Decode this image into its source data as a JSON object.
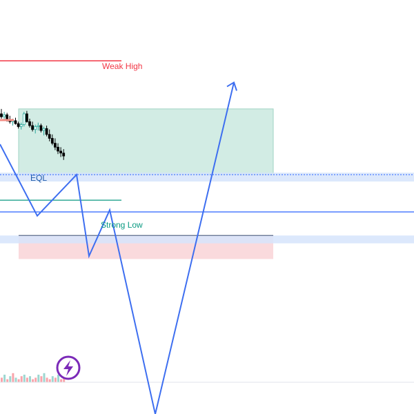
{
  "chart_data": {
    "type": "line",
    "instrument": "",
    "labels": {
      "weak_high": "Weak High",
      "eql": "EQL",
      "strong_low": "Strong Low"
    },
    "colors": {
      "path": "#3d6ef0",
      "weak_high": "#f23645",
      "strong_low": "#089981",
      "level": "#2962ff",
      "target_zone": "#d2ece4",
      "target_zone_border": "#9fd3c3",
      "stop_zone": "#fadadd",
      "demand_band": "#d6e4fb",
      "candle_up": "#26a69a",
      "candle_down": "#000000",
      "volume_up": "#26a69a",
      "volume_down": "#f23645",
      "badge": "#7b2ab8"
    },
    "icon": "lightning-bolt-icon",
    "projected_path": [
      {
        "x": 0.0,
        "y": 105.3
      },
      {
        "x": 9.0,
        "y": 98.0
      },
      {
        "x": 18.5,
        "y": 102.2
      },
      {
        "x": 21.5,
        "y": 93.9
      },
      {
        "x": 26.5,
        "y": 98.6
      },
      {
        "x": 37.5,
        "y": 77.8
      },
      {
        "x": 56.5,
        "y": 111.6
      }
    ],
    "levels": {
      "weak_high": 113.8,
      "eql": 102.2,
      "strong_low": 98.4,
      "internal_low": 99.6
    },
    "zones": {
      "target": {
        "x_from": 4.5,
        "x_to": 66.0,
        "y_from": 102.2,
        "y_to": 108.9
      },
      "stop": {
        "x_from": 4.5,
        "x_to": 66.0,
        "y_from": 96.0,
        "y_to": 93.6
      },
      "demand_upper": {
        "y_from": 101.5,
        "y_to": 102.4
      },
      "demand_lower": {
        "y_from": 95.2,
        "y_to": 96.0
      },
      "demand_bottom": {
        "y_from": 93.6,
        "y_to": 93.1
      }
    },
    "candles": [
      {
        "o": 108.4,
        "h": 108.9,
        "l": 107.9,
        "c": 108.1
      },
      {
        "o": 108.1,
        "h": 108.6,
        "l": 107.8,
        "c": 108.3
      },
      {
        "o": 108.3,
        "h": 108.5,
        "l": 107.6,
        "c": 107.8
      },
      {
        "o": 107.8,
        "h": 108.2,
        "l": 107.4,
        "c": 107.6
      },
      {
        "o": 107.6,
        "h": 107.9,
        "l": 107.2,
        "c": 107.7
      },
      {
        "o": 107.7,
        "h": 108.0,
        "l": 107.3,
        "c": 107.4
      },
      {
        "o": 107.4,
        "h": 107.6,
        "l": 106.9,
        "c": 107.1
      },
      {
        "o": 107.1,
        "h": 107.5,
        "l": 106.8,
        "c": 107.3
      },
      {
        "o": 107.3,
        "h": 108.6,
        "l": 107.1,
        "c": 108.4
      },
      {
        "o": 108.4,
        "h": 108.7,
        "l": 107.5,
        "c": 107.6
      },
      {
        "o": 107.6,
        "h": 107.9,
        "l": 107.0,
        "c": 107.2
      },
      {
        "o": 107.2,
        "h": 107.6,
        "l": 106.6,
        "c": 106.8
      },
      {
        "o": 106.8,
        "h": 107.3,
        "l": 106.4,
        "c": 107.1
      },
      {
        "o": 107.1,
        "h": 107.5,
        "l": 106.7,
        "c": 107.2
      },
      {
        "o": 107.2,
        "h": 107.4,
        "l": 106.5,
        "c": 106.7
      },
      {
        "o": 106.7,
        "h": 107.1,
        "l": 106.2,
        "c": 106.9
      },
      {
        "o": 106.9,
        "h": 107.2,
        "l": 106.1,
        "c": 106.3
      },
      {
        "o": 106.3,
        "h": 106.8,
        "l": 105.6,
        "c": 105.9
      },
      {
        "o": 105.9,
        "h": 106.3,
        "l": 105.2,
        "c": 105.4
      },
      {
        "o": 105.4,
        "h": 105.9,
        "l": 104.7,
        "c": 105.0
      },
      {
        "o": 105.0,
        "h": 105.4,
        "l": 104.3,
        "c": 104.6
      },
      {
        "o": 104.6,
        "h": 105.0,
        "l": 104.0,
        "c": 104.4
      },
      {
        "o": 104.4,
        "h": 104.8,
        "l": 103.7,
        "c": 104.1
      }
    ],
    "volume": [
      3,
      5,
      2,
      4,
      6,
      3,
      2,
      4,
      5,
      3,
      4,
      2,
      3,
      5,
      4,
      6,
      3,
      2,
      4,
      3,
      5,
      2,
      3
    ],
    "volume_up": [
      false,
      true,
      false,
      true,
      false,
      true,
      false,
      false,
      true,
      false,
      true,
      false,
      false,
      true,
      false,
      true,
      false,
      false,
      true,
      false,
      true,
      false,
      false
    ]
  }
}
